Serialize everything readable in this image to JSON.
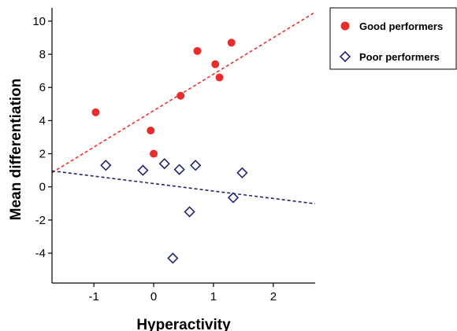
{
  "chart_data": {
    "type": "scatter",
    "xlabel": "Hyperactivity",
    "ylabel": "Mean differentiation",
    "xlim": [
      -1.7,
      2.7
    ],
    "ylim": [
      -5.8,
      10.8
    ],
    "xticks": [
      -1,
      0,
      1,
      2
    ],
    "yticks": [
      -4,
      -2,
      0,
      2,
      4,
      6,
      8,
      10
    ],
    "xtick_labels": [
      "-1",
      "0",
      "1",
      "2"
    ],
    "ytick_labels": [
      "-4",
      "-2",
      "0",
      "2",
      "4",
      "6",
      "8",
      "10"
    ],
    "grid": false,
    "legend_position": "top-right, outside plot",
    "series": [
      {
        "name": "Good performers",
        "marker": "circle",
        "color": "#ee2b2b",
        "x": [
          -0.97,
          -0.05,
          0.0,
          0.45,
          0.73,
          1.03,
          1.1,
          1.3
        ],
        "y": [
          4.5,
          3.4,
          2.0,
          5.5,
          8.2,
          7.4,
          6.6,
          8.7
        ],
        "fit_line": {
          "style": "dashed",
          "color": "#ee3030",
          "slope": 2.2,
          "intercept": 4.6
        }
      },
      {
        "name": "Poor performers",
        "marker": "diamond-open",
        "color": "#262670",
        "x": [
          -0.8,
          -0.18,
          0.18,
          0.32,
          0.43,
          0.6,
          0.7,
          1.33,
          1.48
        ],
        "y": [
          1.3,
          1.0,
          1.4,
          -4.3,
          1.05,
          -1.5,
          1.3,
          -0.65,
          0.85
        ],
        "fit_line": {
          "style": "dashed",
          "color": "#262670",
          "slope": -0.45,
          "intercept": 0.2
        }
      }
    ]
  }
}
